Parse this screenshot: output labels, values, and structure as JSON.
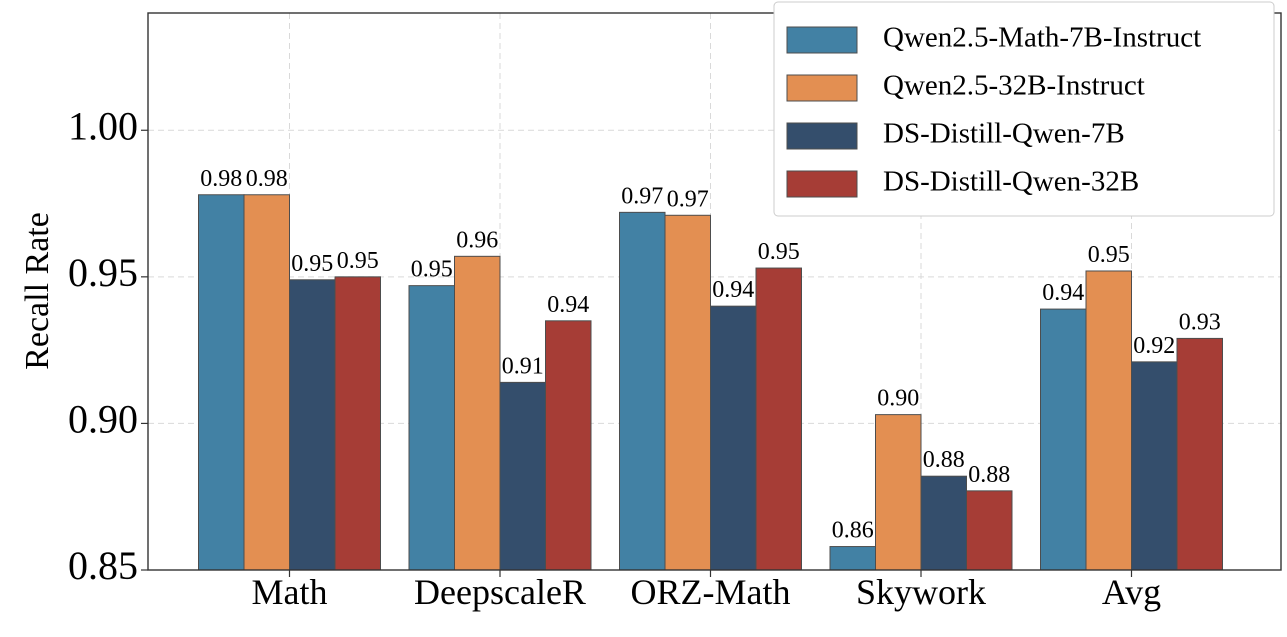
{
  "chart_data": {
    "type": "bar",
    "title": "",
    "xlabel": "",
    "ylabel": "Recall Rate",
    "ylim": [
      0.85,
      1.04
    ],
    "yticks": [
      0.85,
      0.9,
      0.95,
      1.0
    ],
    "ytick_labels": [
      "0.85",
      "0.90",
      "0.95",
      "1.00"
    ],
    "grid": true,
    "legend_position": "top-right",
    "categories": [
      "Math",
      "DeepscaleR",
      "ORZ-Math",
      "Skywork",
      "Avg"
    ],
    "series": [
      {
        "name": "Qwen2.5-Math-7B-Instruct",
        "color": "#4281a4",
        "values": [
          0.978,
          0.947,
          0.972,
          0.858,
          0.939
        ],
        "labels": [
          "0.98",
          "0.95",
          "0.97",
          "0.86",
          "0.94"
        ]
      },
      {
        "name": "Qwen2.5-32B-Instruct",
        "color": "#e38f52",
        "values": [
          0.978,
          0.957,
          0.971,
          0.903,
          0.952
        ],
        "labels": [
          "0.98",
          "0.96",
          "0.97",
          "0.90",
          "0.95"
        ]
      },
      {
        "name": "DS-Distill-Qwen-7B",
        "color": "#344e6c",
        "values": [
          0.949,
          0.914,
          0.94,
          0.882,
          0.921
        ],
        "labels": [
          "0.95",
          "0.91",
          "0.94",
          "0.88",
          "0.92"
        ]
      },
      {
        "name": "DS-Distill-Qwen-32B",
        "color": "#a63d36",
        "values": [
          0.95,
          0.935,
          0.953,
          0.877,
          0.929
        ],
        "labels": [
          "0.95",
          "0.94",
          "0.95",
          "0.88",
          "0.93"
        ]
      }
    ]
  }
}
